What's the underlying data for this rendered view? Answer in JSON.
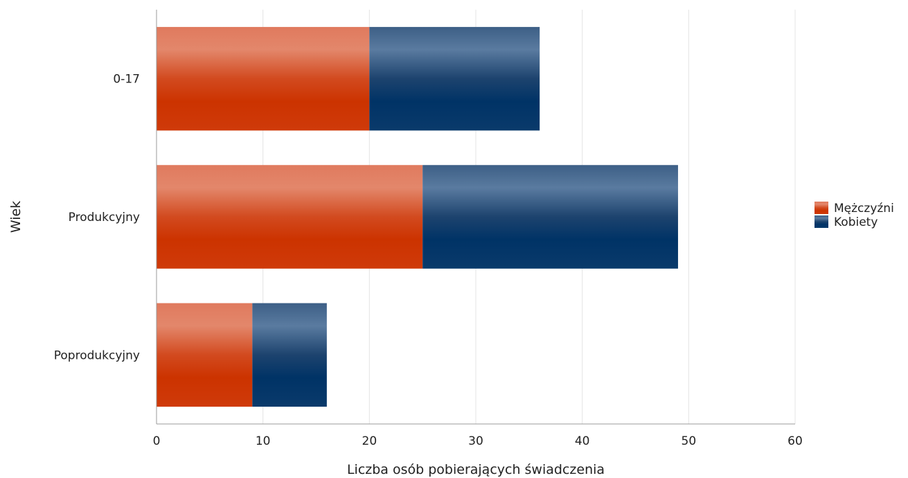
{
  "chart_data": {
    "type": "bar",
    "orientation": "horizontal",
    "stacked": true,
    "categories": [
      "0-17",
      "Produkcyjny",
      "Poprodukcyjny"
    ],
    "series": [
      {
        "name": "Mężczyźni",
        "values": [
          20,
          25,
          9
        ],
        "color": "#cc3300"
      },
      {
        "name": "Kobiety",
        "values": [
          16,
          24,
          7
        ],
        "color": "#003366"
      }
    ],
    "xlabel": "Liczba osób pobierających świadczenia",
    "ylabel": "Wiek",
    "xlim": [
      0,
      60
    ],
    "xticks": [
      0,
      10,
      20,
      30,
      40,
      50,
      60
    ],
    "grid": true,
    "legend_position": "right"
  }
}
